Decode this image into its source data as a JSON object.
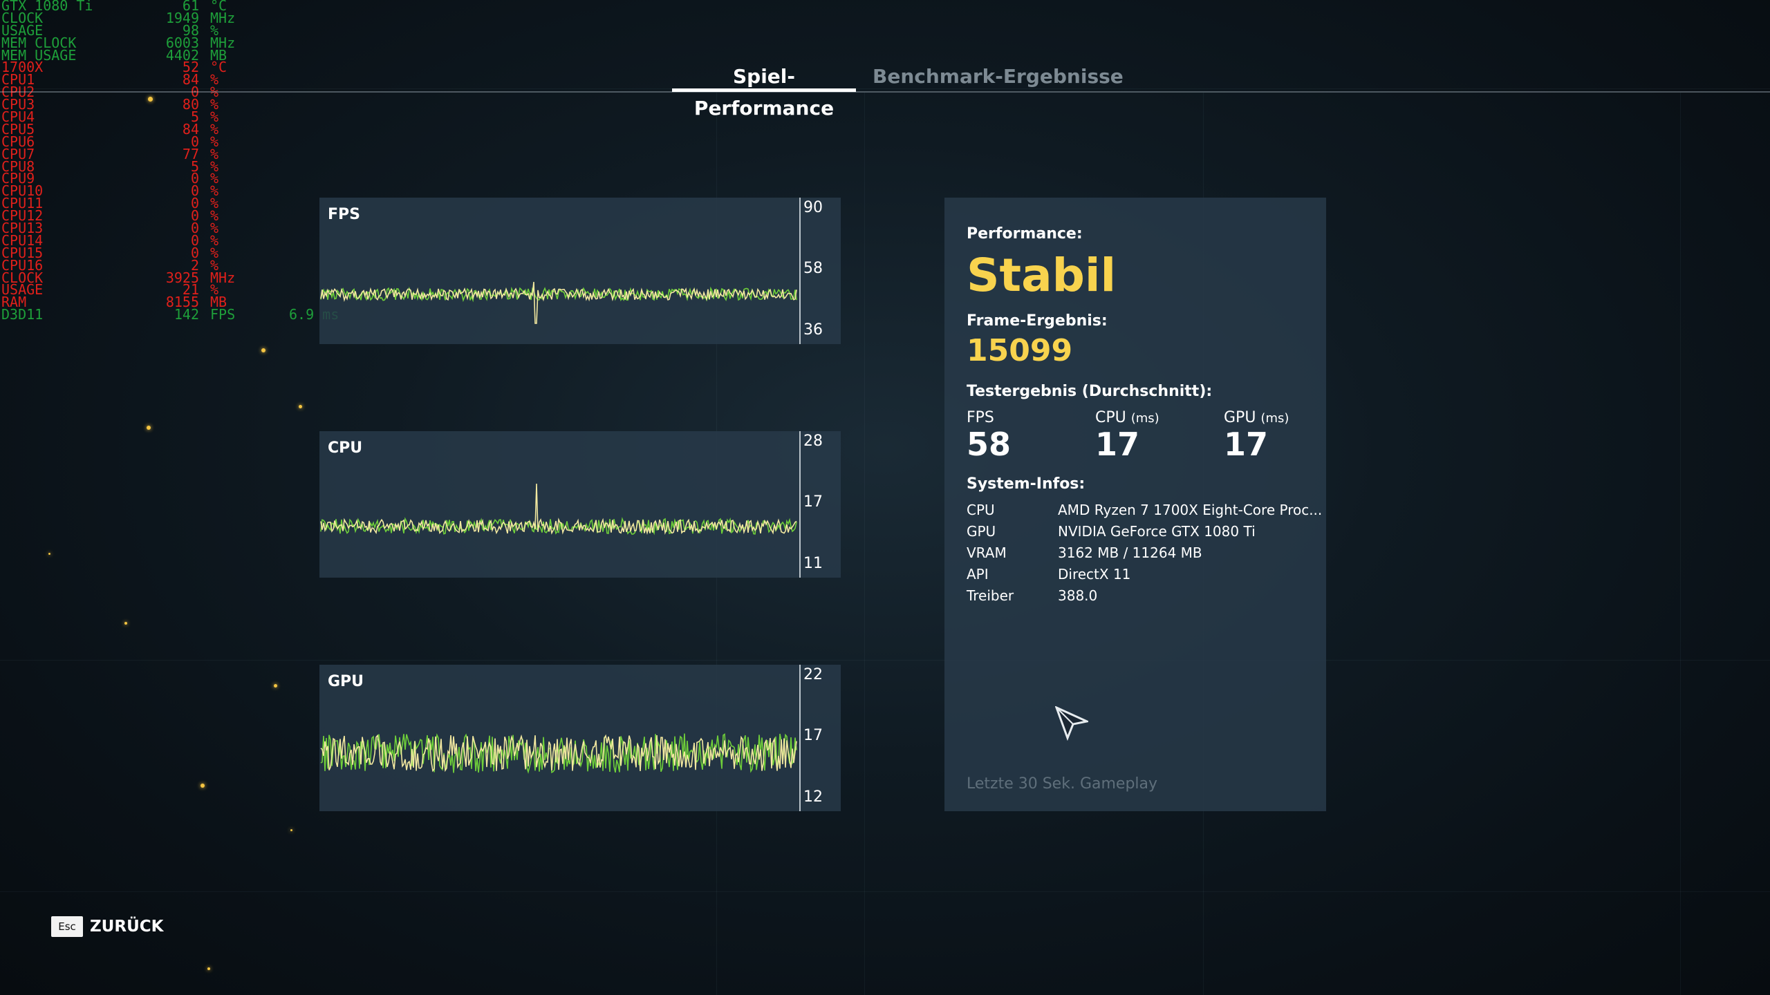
{
  "osd": [
    {
      "label": "GTX 1080 Ti",
      "value": "61",
      "unit": "°C",
      "color": "#1e9f3a"
    },
    {
      "label": "CLOCK",
      "value": "1949",
      "unit": "MHz",
      "color": "#1e9f3a"
    },
    {
      "label": "USAGE",
      "value": "98",
      "unit": "%",
      "color": "#1e9f3a"
    },
    {
      "label": "MEM CLOCK",
      "value": "6003",
      "unit": "MHz",
      "color": "#1e9f3a"
    },
    {
      "label": "MEM USAGE",
      "value": "4402",
      "unit": "MB",
      "color": "#1e9f3a"
    },
    {
      "label": "1700X",
      "value": "52",
      "unit": "°C",
      "color": "#e0201b"
    },
    {
      "label": "CPU1",
      "value": "84",
      "unit": "%",
      "color": "#e0201b"
    },
    {
      "label": "CPU2",
      "value": "0",
      "unit": "%",
      "color": "#e0201b"
    },
    {
      "label": "CPU3",
      "value": "80",
      "unit": "%",
      "color": "#e0201b"
    },
    {
      "label": "CPU4",
      "value": "5",
      "unit": "%",
      "color": "#e0201b"
    },
    {
      "label": "CPU5",
      "value": "84",
      "unit": "%",
      "color": "#e0201b"
    },
    {
      "label": "CPU6",
      "value": "0",
      "unit": "%",
      "color": "#e0201b"
    },
    {
      "label": "CPU7",
      "value": "77",
      "unit": "%",
      "color": "#e0201b"
    },
    {
      "label": "CPU8",
      "value": "5",
      "unit": "%",
      "color": "#e0201b"
    },
    {
      "label": "CPU9",
      "value": "0",
      "unit": "%",
      "color": "#e0201b"
    },
    {
      "label": "CPU10",
      "value": "0",
      "unit": "%",
      "color": "#e0201b"
    },
    {
      "label": "CPU11",
      "value": "0",
      "unit": "%",
      "color": "#e0201b"
    },
    {
      "label": "CPU12",
      "value": "0",
      "unit": "%",
      "color": "#e0201b"
    },
    {
      "label": "CPU13",
      "value": "0",
      "unit": "%",
      "color": "#e0201b"
    },
    {
      "label": "CPU14",
      "value": "0",
      "unit": "%",
      "color": "#e0201b"
    },
    {
      "label": "CPU15",
      "value": "0",
      "unit": "%",
      "color": "#e0201b"
    },
    {
      "label": "CPU16",
      "value": "2",
      "unit": "%",
      "color": "#e0201b"
    },
    {
      "label": "CLOCK",
      "value": "3925",
      "unit": "MHz",
      "color": "#e0201b"
    },
    {
      "label": "USAGE",
      "value": "21",
      "unit": "%",
      "color": "#e0201b"
    },
    {
      "label": "RAM",
      "value": "8155",
      "unit": "MB",
      "color": "#e0201b"
    },
    {
      "label": "D3D11",
      "value": "142",
      "unit": "FPS",
      "color": "#1e9f3a",
      "extra": "6.9 ms"
    }
  ],
  "tabs": {
    "performance": "Spiel-Performance",
    "benchmark": "Benchmark-Ergebnisse"
  },
  "graphs": [
    {
      "title": "FPS",
      "ticks": [
        "90",
        "58",
        "36"
      ]
    },
    {
      "title": "CPU",
      "ticks": [
        "28",
        "17",
        "11"
      ]
    },
    {
      "title": "GPU",
      "ticks": [
        "22",
        "17",
        "12"
      ]
    }
  ],
  "info": {
    "performance_label": "Performance:",
    "performance_value": "Stabil",
    "frame_label": "Frame-Ergebnis:",
    "frame_value": "15099",
    "test_label": "Testergebnis (Durchschnitt):",
    "results": [
      {
        "name": "FPS",
        "unit": "",
        "value": "58"
      },
      {
        "name": "CPU",
        "unit": "(ms)",
        "value": "17"
      },
      {
        "name": "GPU",
        "unit": "(ms)",
        "value": "17"
      }
    ],
    "system_label": "System-Infos:",
    "system": [
      {
        "key": "CPU",
        "value": "AMD Ryzen 7 1700X Eight-Core Proc..."
      },
      {
        "key": "GPU",
        "value": "NVIDIA GeForce GTX 1080 Ti"
      },
      {
        "key": "VRAM",
        "value": "3162 MB / 11264 MB"
      },
      {
        "key": "API",
        "value": "DirectX 11"
      },
      {
        "key": "Treiber",
        "value": "388.0"
      }
    ],
    "footnote": "Letzte 30 Sek. Gameplay"
  },
  "back": {
    "key": "Esc",
    "label": "ZURÜCK"
  },
  "colors": {
    "accent": "#f8d34e",
    "trace_yellow": "#f2e8a0",
    "trace_green": "#6fcf3a",
    "osd_green": "#1e9f3a",
    "osd_red": "#e0201b"
  }
}
